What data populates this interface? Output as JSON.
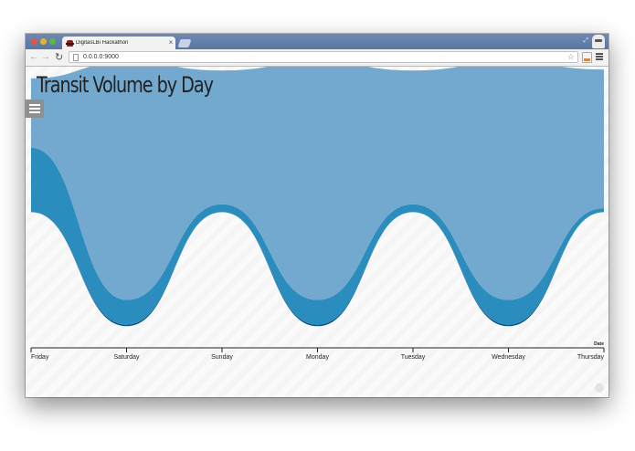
{
  "browser": {
    "tab_title": "DigitasLBi Hackathon",
    "tab_close": "×",
    "url": "0.0.0.0:9000"
  },
  "page": {
    "title": "Transit Volume by Day"
  },
  "chart_data": {
    "type": "area",
    "layout": "streamgraph",
    "x_axis_label": "Date",
    "categories": [
      "Friday",
      "Saturday",
      "Sunday",
      "Monday",
      "Tuesday",
      "Wednesday",
      "Thursday"
    ],
    "baseline": [
      135,
      20,
      135,
      20,
      135,
      20,
      135
    ],
    "series": [
      {
        "color": "#064f85",
        "values": [
          0,
          1.5,
          0,
          1.5,
          0,
          1.5,
          0
        ]
      },
      {
        "color": "#2b8cbe",
        "values": [
          65,
          25,
          8,
          25,
          8,
          25,
          4
        ]
      },
      {
        "color": "#74a9cf",
        "values": [
          70,
          240,
          135,
          240,
          135,
          240,
          140
        ]
      }
    ],
    "y_range": [
      0,
      280
    ],
    "legend": "none",
    "grid": false
  }
}
